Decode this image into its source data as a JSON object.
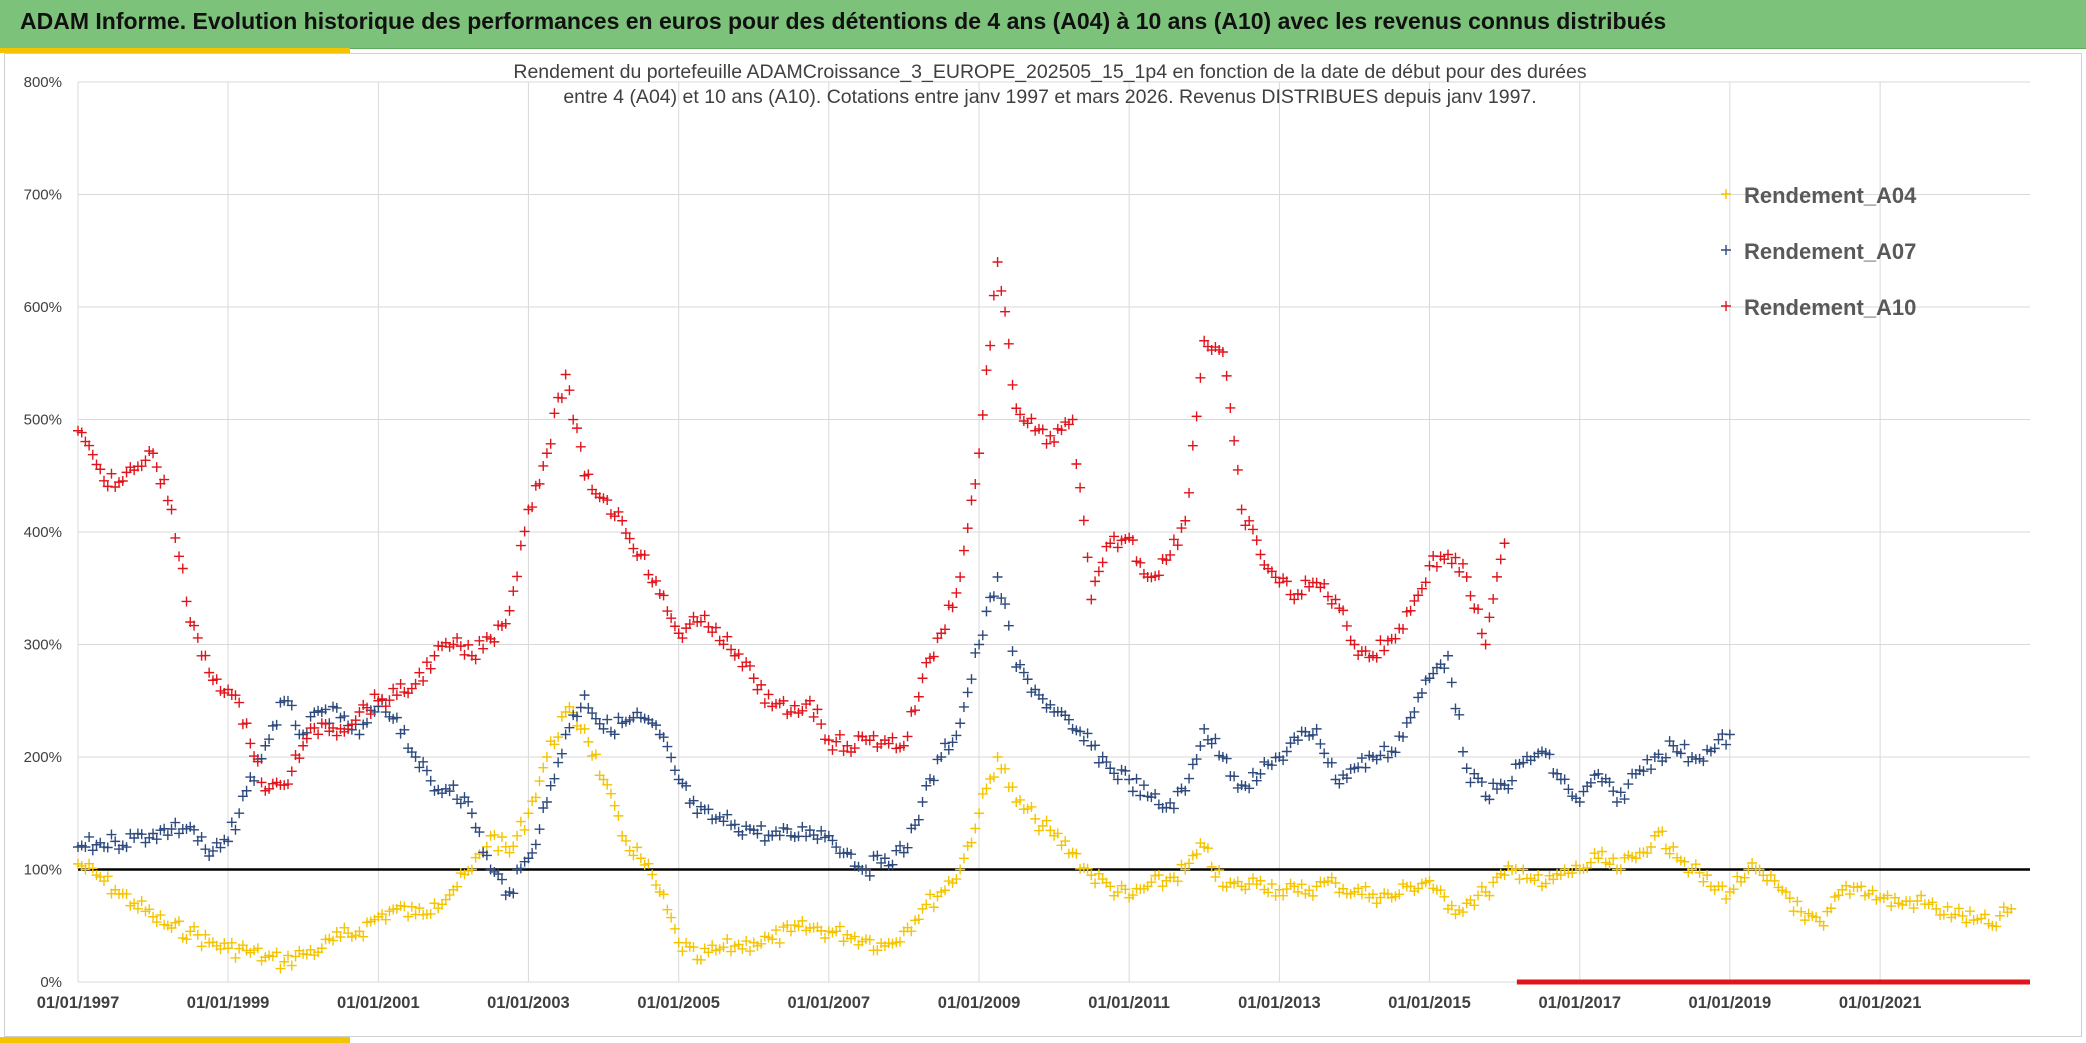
{
  "header": {
    "title": "ADAM Informe. Evolution historique des performances en euros pour des détentions de 4 ans (A04) à 10 ans (A10) avec les revenus connus distribués"
  },
  "colors": {
    "banner": "#7dc27a",
    "accent": "#f5c400",
    "A04": "#f5c400",
    "A07": "#2e4a7d",
    "A10": "#e0141b",
    "reference_line": "#000000",
    "grid": "#d9d9d9"
  },
  "chart_data": {
    "type": "scatter",
    "marker": "plus",
    "title_line1": "Rendement du portefeuille ADAMCroissance_3_EUROPE_202505_15_1p4  en fonction de la date de début pour des durées",
    "title_line2": "entre 4 (A04) et 10 ans (A10). Cotations entre janv 1997 et mars 2026. Revenus DISTRIBUES depuis janv 1997.",
    "xlabel": "",
    "ylabel": "",
    "ylim": [
      0,
      800
    ],
    "y_unit": "%",
    "y_ticks": [
      "0%",
      "100%",
      "200%",
      "300%",
      "400%",
      "500%",
      "600%",
      "700%",
      "800%"
    ],
    "x_range": [
      "1997-01-01",
      "2022-12-31"
    ],
    "x_tick_labels": [
      "01/01/1997",
      "01/01/1999",
      "01/01/2001",
      "01/01/2003",
      "01/01/2005",
      "01/01/2007",
      "01/01/2009",
      "01/01/2011",
      "01/01/2013",
      "01/01/2015",
      "01/01/2017",
      "01/01/2019",
      "01/01/2021"
    ],
    "x_tick_dates": [
      "1997-01-01",
      "1999-01-01",
      "2001-01-01",
      "2003-01-01",
      "2005-01-01",
      "2007-01-01",
      "2009-01-01",
      "2011-01-01",
      "2013-01-01",
      "2015-01-01",
      "2017-01-01",
      "2019-01-01",
      "2021-01-01"
    ],
    "reference_line": 100,
    "grid": "vertical and horizontal",
    "legend": "top-right",
    "series": [
      {
        "name": "Rendement_A04",
        "color": "#f5c400",
        "x": [
          "1997-01-01",
          "1997-04-01",
          "1997-07-01",
          "1997-10-01",
          "1998-01-01",
          "1998-04-01",
          "1998-07-01",
          "1998-10-01",
          "1999-01-01",
          "1999-04-01",
          "1999-07-01",
          "1999-10-01",
          "2000-01-01",
          "2000-04-01",
          "2000-07-01",
          "2000-10-01",
          "2001-01-01",
          "2001-04-01",
          "2001-07-01",
          "2001-10-01",
          "2002-01-01",
          "2002-04-01",
          "2002-07-01",
          "2002-10-01",
          "2003-01-01",
          "2003-04-01",
          "2003-07-01",
          "2003-10-01",
          "2004-01-01",
          "2004-04-01",
          "2004-07-01",
          "2004-10-01",
          "2005-01-01",
          "2005-04-01",
          "2005-07-01",
          "2005-10-01",
          "2006-01-01",
          "2006-04-01",
          "2006-07-01",
          "2006-10-01",
          "2007-01-01",
          "2007-04-01",
          "2007-07-01",
          "2007-10-01",
          "2008-01-01",
          "2008-04-01",
          "2008-07-01",
          "2008-10-01",
          "2009-01-01",
          "2009-04-01",
          "2009-07-01",
          "2009-10-01",
          "2010-01-01",
          "2010-04-01",
          "2010-07-01",
          "2010-10-01",
          "2011-01-01",
          "2011-04-01",
          "2011-07-01",
          "2011-10-01",
          "2012-01-01",
          "2012-04-01",
          "2012-07-01",
          "2012-10-01",
          "2013-01-01",
          "2013-04-01",
          "2013-07-01",
          "2013-10-01",
          "2014-01-01",
          "2014-04-01",
          "2014-07-01",
          "2014-10-01",
          "2015-01-01",
          "2015-04-01",
          "2015-07-01",
          "2015-10-01",
          "2016-01-01",
          "2016-04-01",
          "2016-07-01",
          "2016-10-01",
          "2017-01-01",
          "2017-04-01",
          "2017-07-01",
          "2017-10-01",
          "2018-01-01",
          "2018-04-01",
          "2018-07-01",
          "2018-10-01",
          "2019-01-01",
          "2019-04-01",
          "2019-07-01",
          "2019-10-01",
          "2020-01-01",
          "2020-04-01",
          "2020-07-01",
          "2020-10-01",
          "2021-01-01",
          "2021-04-01",
          "2021-07-01",
          "2021-10-01",
          "2022-01-01",
          "2022-04-01",
          "2022-07-01",
          "2022-10-01"
        ],
        "values": [
          105,
          95,
          82,
          70,
          58,
          48,
          45,
          35,
          30,
          28,
          22,
          18,
          25,
          30,
          40,
          45,
          58,
          65,
          60,
          70,
          82,
          100,
          130,
          115,
          150,
          200,
          240,
          225,
          180,
          130,
          110,
          80,
          35,
          20,
          28,
          32,
          35,
          38,
          45,
          48,
          45,
          42,
          38,
          32,
          45,
          65,
          80,
          100,
          150,
          200,
          160,
          145,
          130,
          115,
          95,
          85,
          75,
          85,
          90,
          100,
          120,
          85,
          85,
          90,
          82,
          80,
          85,
          88,
          80,
          78,
          75,
          85,
          90,
          65,
          70,
          80,
          95,
          100,
          85,
          95,
          100,
          110,
          100,
          110,
          130,
          120,
          100,
          85,
          80,
          100,
          90,
          80,
          55,
          50,
          82,
          85,
          75,
          70,
          72,
          65,
          60,
          55,
          50,
          65
        ]
      },
      {
        "name": "Rendement_A07",
        "color": "#2e4a7d",
        "x": [
          "1997-01-01",
          "1997-04-01",
          "1997-07-01",
          "1997-10-01",
          "1998-01-01",
          "1998-04-01",
          "1998-07-01",
          "1998-10-01",
          "1999-01-01",
          "1999-04-01",
          "1999-07-01",
          "1999-10-01",
          "2000-01-01",
          "2000-04-01",
          "2000-07-01",
          "2000-10-01",
          "2001-01-01",
          "2001-04-01",
          "2001-07-01",
          "2001-10-01",
          "2002-01-01",
          "2002-04-01",
          "2002-07-01",
          "2002-10-01",
          "2003-01-01",
          "2003-04-01",
          "2003-07-01",
          "2003-10-01",
          "2004-01-01",
          "2004-04-01",
          "2004-07-01",
          "2004-10-01",
          "2005-01-01",
          "2005-04-01",
          "2005-07-01",
          "2005-10-01",
          "2006-01-01",
          "2006-04-01",
          "2006-07-01",
          "2006-10-01",
          "2007-01-01",
          "2007-04-01",
          "2007-07-01",
          "2007-10-01",
          "2008-01-01",
          "2008-04-01",
          "2008-07-01",
          "2008-10-01",
          "2009-01-01",
          "2009-04-01",
          "2009-07-01",
          "2009-10-01",
          "2010-01-01",
          "2010-04-01",
          "2010-07-01",
          "2010-10-01",
          "2011-01-01",
          "2011-04-01",
          "2011-07-01",
          "2011-10-01",
          "2012-01-01",
          "2012-04-01",
          "2012-07-01",
          "2012-10-01",
          "2013-01-01",
          "2013-04-01",
          "2013-07-01",
          "2013-10-01",
          "2014-01-01",
          "2014-04-01",
          "2014-07-01",
          "2014-10-01",
          "2015-01-01",
          "2015-04-01",
          "2015-07-01",
          "2015-10-01",
          "2016-01-01",
          "2016-04-01",
          "2016-07-01",
          "2016-10-01",
          "2017-01-01",
          "2017-04-01",
          "2017-07-01",
          "2017-10-01",
          "2018-01-01",
          "2018-04-01",
          "2018-07-01",
          "2018-10-01",
          "2019-01-01"
        ],
        "values": [
          120,
          122,
          125,
          128,
          132,
          136,
          138,
          112,
          125,
          170,
          210,
          250,
          220,
          240,
          235,
          220,
          245,
          235,
          200,
          170,
          175,
          150,
          100,
          80,
          110,
          160,
          220,
          255,
          225,
          230,
          235,
          220,
          180,
          150,
          145,
          140,
          135,
          130,
          130,
          135,
          130,
          115,
          100,
          110,
          115,
          160,
          200,
          230,
          300,
          360,
          280,
          260,
          240,
          225,
          210,
          190,
          180,
          165,
          155,
          170,
          225,
          200,
          175,
          185,
          200,
          215,
          225,
          180,
          190,
          200,
          205,
          235,
          270,
          290,
          190,
          165,
          175,
          195,
          205,
          180,
          160,
          185,
          160,
          185,
          200,
          210,
          200,
          205,
          220
        ]
      },
      {
        "name": "Rendement_A10",
        "color": "#e0141b",
        "x": [
          "1997-01-01",
          "1997-04-01",
          "1997-07-01",
          "1997-10-01",
          "1998-01-01",
          "1998-04-01",
          "1998-07-01",
          "1998-10-01",
          "1999-01-01",
          "1999-04-01",
          "1999-07-01",
          "1999-10-01",
          "2000-01-01",
          "2000-04-01",
          "2000-07-01",
          "2000-10-01",
          "2001-01-01",
          "2001-04-01",
          "2001-07-01",
          "2001-10-01",
          "2002-01-01",
          "2002-04-01",
          "2002-07-01",
          "2002-10-01",
          "2003-01-01",
          "2003-04-01",
          "2003-07-01",
          "2003-10-01",
          "2004-01-01",
          "2004-04-01",
          "2004-07-01",
          "2004-10-01",
          "2005-01-01",
          "2005-04-01",
          "2005-07-01",
          "2005-10-01",
          "2006-01-01",
          "2006-04-01",
          "2006-07-01",
          "2006-10-01",
          "2007-01-01",
          "2007-04-01",
          "2007-07-01",
          "2007-10-01",
          "2008-01-01",
          "2008-04-01",
          "2008-07-01",
          "2008-10-01",
          "2009-01-01",
          "2009-04-01",
          "2009-07-01",
          "2009-10-01",
          "2010-01-01",
          "2010-04-01",
          "2010-07-01",
          "2010-10-01",
          "2011-01-01",
          "2011-04-01",
          "2011-07-01",
          "2011-10-01",
          "2012-01-01",
          "2012-04-01",
          "2012-07-01",
          "2012-10-01",
          "2013-01-01",
          "2013-04-01",
          "2013-07-01",
          "2013-10-01",
          "2014-01-01",
          "2014-04-01",
          "2014-07-01",
          "2014-10-01",
          "2015-01-01",
          "2015-04-01",
          "2015-07-01",
          "2015-10-01",
          "2016-01-01"
        ],
        "values": [
          490,
          460,
          440,
          455,
          470,
          420,
          320,
          275,
          260,
          230,
          170,
          175,
          210,
          230,
          225,
          240,
          250,
          255,
          265,
          290,
          300,
          290,
          305,
          330,
          420,
          470,
          540,
          450,
          430,
          410,
          380,
          345,
          310,
          320,
          315,
          290,
          270,
          245,
          240,
          250,
          215,
          210,
          215,
          215,
          210,
          270,
          310,
          360,
          470,
          640,
          510,
          490,
          480,
          500,
          340,
          390,
          395,
          360,
          375,
          410,
          570,
          560,
          420,
          380,
          355,
          345,
          355,
          340,
          300,
          290,
          305,
          330,
          370,
          380,
          360,
          300,
          390
        ]
      }
    ],
    "inline_bar": {
      "color": "#e0141b",
      "from": "2016-03-01",
      "to": "2022-12-31",
      "value": 0
    }
  }
}
